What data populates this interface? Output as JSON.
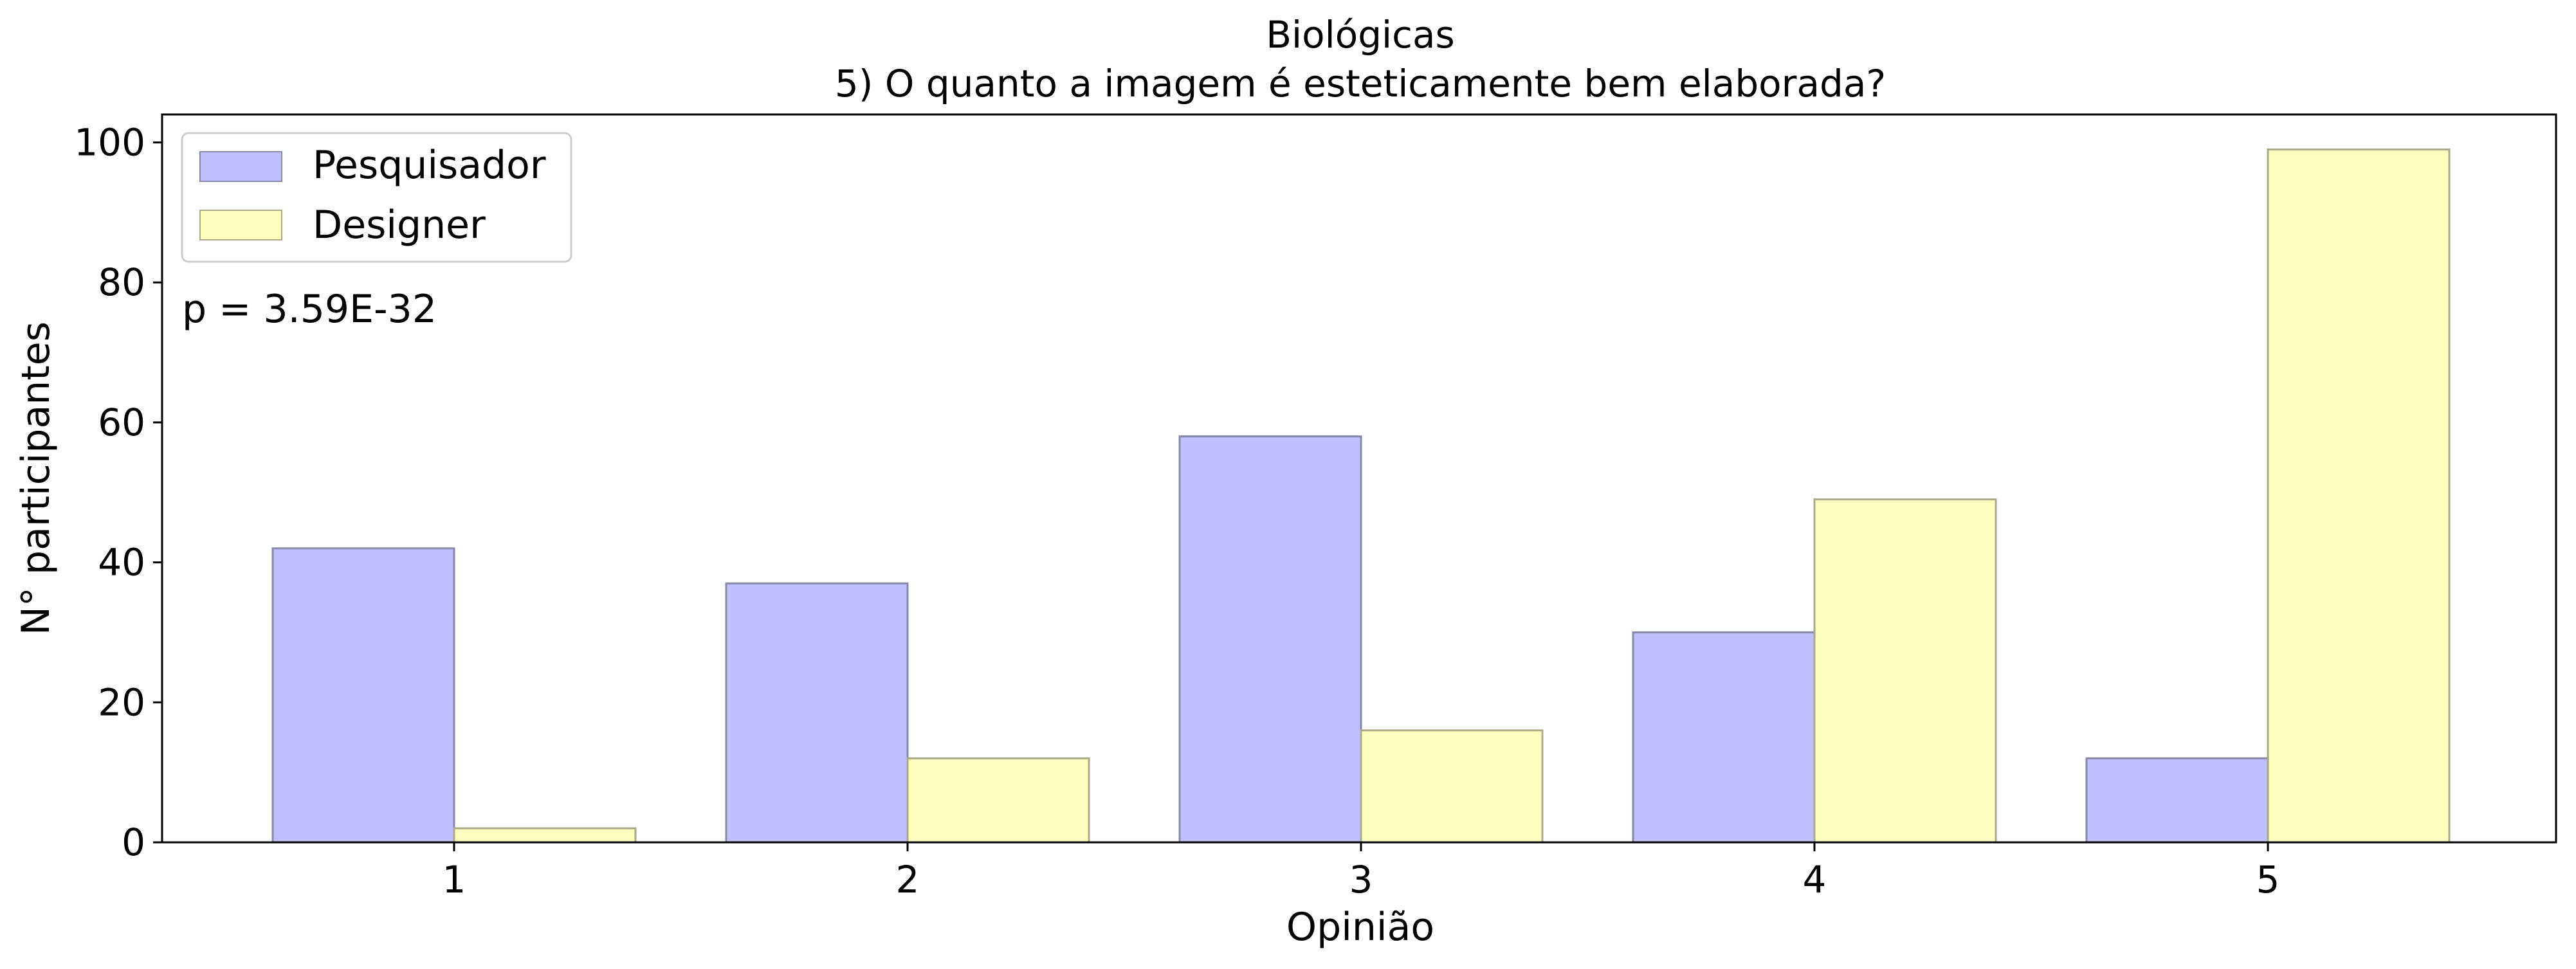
{
  "chart_data": {
    "type": "bar",
    "title": "Biológicas",
    "subtitle": "5) O quanto a imagem é esteticamente bem elaborada?",
    "xlabel": "Opinião",
    "ylabel": "N° participantes",
    "categories": [
      "1",
      "2",
      "3",
      "4",
      "5"
    ],
    "series": [
      {
        "name": "Pesquisador",
        "values": [
          42,
          37,
          58,
          30,
          12
        ],
        "color": "#c0c0ff"
      },
      {
        "name": "Designer",
        "values": [
          2,
          12,
          16,
          49,
          99
        ],
        "color": "#ffffc0"
      }
    ],
    "ylim": [
      0,
      104
    ],
    "yticks": [
      0,
      20,
      40,
      60,
      80,
      100
    ],
    "grid": false,
    "legend_position": "top-left",
    "annotation": "p = 3.59E-32"
  }
}
